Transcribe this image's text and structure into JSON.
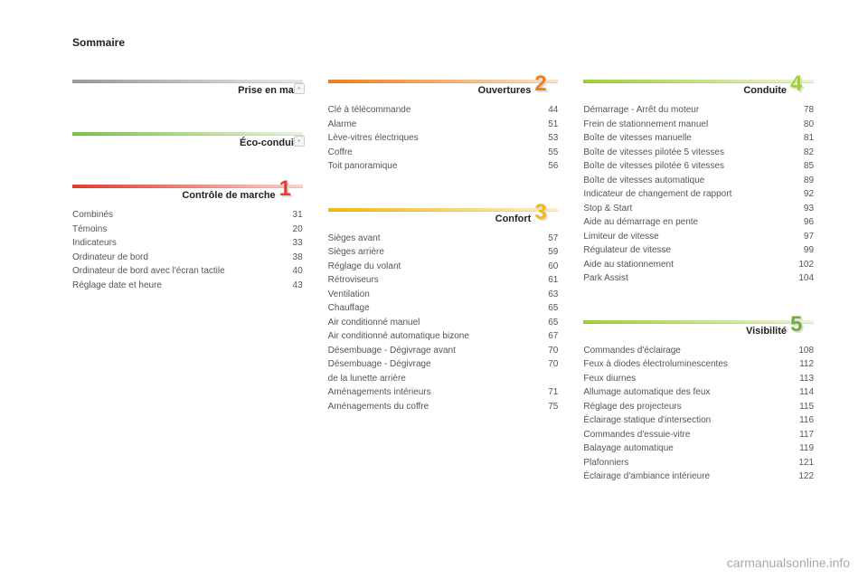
{
  "page_title": "Sommaire",
  "watermark": "carmanualsonline.info",
  "colors": {
    "grad_grey": [
      "#9a9a9a",
      "#e8e8e8"
    ],
    "grad_green": [
      "#7bc24a",
      "#e8f4dd"
    ],
    "grad_red": [
      "#e63b2e",
      "#f8d4cf"
    ],
    "grad_orange": [
      "#f07f1a",
      "#fce1c8"
    ],
    "grad_yellow": [
      "#f2b90f",
      "#fbefc8"
    ],
    "grad_lime": [
      "#9fcf3a",
      "#ecf5d6"
    ],
    "num_red": "#e63b2e",
    "num_orange": "#f07f1a",
    "num_yellow": "#f2b90f",
    "num_lime": "#9fcf3a",
    "num_green2": "#6fae3f",
    "num_shadow": "#dddddd",
    "text": "#222222",
    "subtext": "#555555"
  },
  "fonts": {
    "title_size_pt": 9,
    "item_size_pt": 7.5,
    "section_title_size_pt": 8.5,
    "number_size_pt": 20
  },
  "columns": [
    {
      "sections": [
        {
          "title": "Prise en main",
          "gradient": "grad_grey",
          "pill": "•",
          "items": []
        },
        {
          "title": "Éco-conduite",
          "gradient": "grad_green",
          "pill": "•",
          "items": []
        },
        {
          "title": "Contrôle de marche",
          "gradient": "grad_red",
          "number": "1",
          "num_color": "num_red",
          "items": [
            {
              "label": "Combinés",
              "page": "31"
            },
            {
              "label": "Témoins",
              "page": "20"
            },
            {
              "label": "Indicateurs",
              "page": "33"
            },
            {
              "label": "Ordinateur de bord",
              "page": "38"
            },
            {
              "label": "Ordinateur de bord avec l'écran tactile",
              "page": "40"
            },
            {
              "label": "Réglage date et heure",
              "page": "43"
            }
          ]
        }
      ]
    },
    {
      "sections": [
        {
          "title": "Ouvertures",
          "gradient": "grad_orange",
          "number": "2",
          "num_color": "num_orange",
          "items": [
            {
              "label": "Clé à télécommande",
              "page": "44"
            },
            {
              "label": "Alarme",
              "page": "51"
            },
            {
              "label": "Lève-vitres électriques",
              "page": "53"
            },
            {
              "label": "Coffre",
              "page": "55"
            },
            {
              "label": "Toit panoramique",
              "page": "56"
            }
          ]
        },
        {
          "title": "Confort",
          "gradient": "grad_yellow",
          "number": "3",
          "num_color": "num_yellow",
          "items": [
            {
              "label": "Sièges avant",
              "page": "57"
            },
            {
              "label": "Sièges arrière",
              "page": "59"
            },
            {
              "label": "Réglage du volant",
              "page": "60"
            },
            {
              "label": "Rétroviseurs",
              "page": "61"
            },
            {
              "label": "Ventilation",
              "page": "63"
            },
            {
              "label": "Chauffage",
              "page": "65"
            },
            {
              "label": "Air conditionné manuel",
              "page": "65"
            },
            {
              "label": "Air conditionné automatique bizone",
              "page": "67"
            },
            {
              "label": "Désembuage - Dégivrage avant",
              "page": "70"
            },
            {
              "label": "Désembuage - Dégivrage\n  de la lunette arrière",
              "page": "70"
            },
            {
              "label": "Aménagements intérieurs",
              "page": "71"
            },
            {
              "label": "Aménagements du coffre",
              "page": "75"
            }
          ]
        }
      ]
    },
    {
      "sections": [
        {
          "title": "Conduite",
          "gradient": "grad_lime",
          "number": "4",
          "num_color": "num_lime",
          "items": [
            {
              "label": "Démarrage - Arrêt du moteur",
              "page": "78"
            },
            {
              "label": "Frein de stationnement manuel",
              "page": "80"
            },
            {
              "label": "Boîte de vitesses manuelle",
              "page": "81"
            },
            {
              "label": "Boîte de vitesses pilotée 5 vitesses",
              "page": "82"
            },
            {
              "label": "Boîte de vitesses pilotée 6 vitesses",
              "page": "85"
            },
            {
              "label": "Boîte de vitesses automatique",
              "page": "89"
            },
            {
              "label": "Indicateur de changement de rapport",
              "page": "92"
            },
            {
              "label": "Stop & Start",
              "page": "93"
            },
            {
              "label": "Aide au démarrage en pente",
              "page": "96"
            },
            {
              "label": "Limiteur de vitesse",
              "page": "97"
            },
            {
              "label": "Régulateur de vitesse",
              "page": "99"
            },
            {
              "label": "Aide au stationnement",
              "page": "102"
            },
            {
              "label": "Park Assist",
              "page": "104"
            }
          ]
        },
        {
          "title": "Visibilité",
          "gradient": "grad_lime",
          "number": "5",
          "num_color": "num_green2",
          "items": [
            {
              "label": "Commandes d'éclairage",
              "page": "108"
            },
            {
              "label": "Feux à diodes électroluminescentes",
              "page": "112"
            },
            {
              "label": "Feux diurnes",
              "page": "113"
            },
            {
              "label": "Allumage automatique des feux",
              "page": "114"
            },
            {
              "label": "Réglage des projecteurs",
              "page": "115"
            },
            {
              "label": "Éclairage statique d'intersection",
              "page": "116"
            },
            {
              "label": "Commandes d'essuie-vitre",
              "page": "117"
            },
            {
              "label": "Balayage automatique",
              "page": "119"
            },
            {
              "label": "Plafonniers",
              "page": "121"
            },
            {
              "label": "Éclairage d'ambiance intérieure",
              "page": "122"
            }
          ]
        }
      ]
    }
  ]
}
